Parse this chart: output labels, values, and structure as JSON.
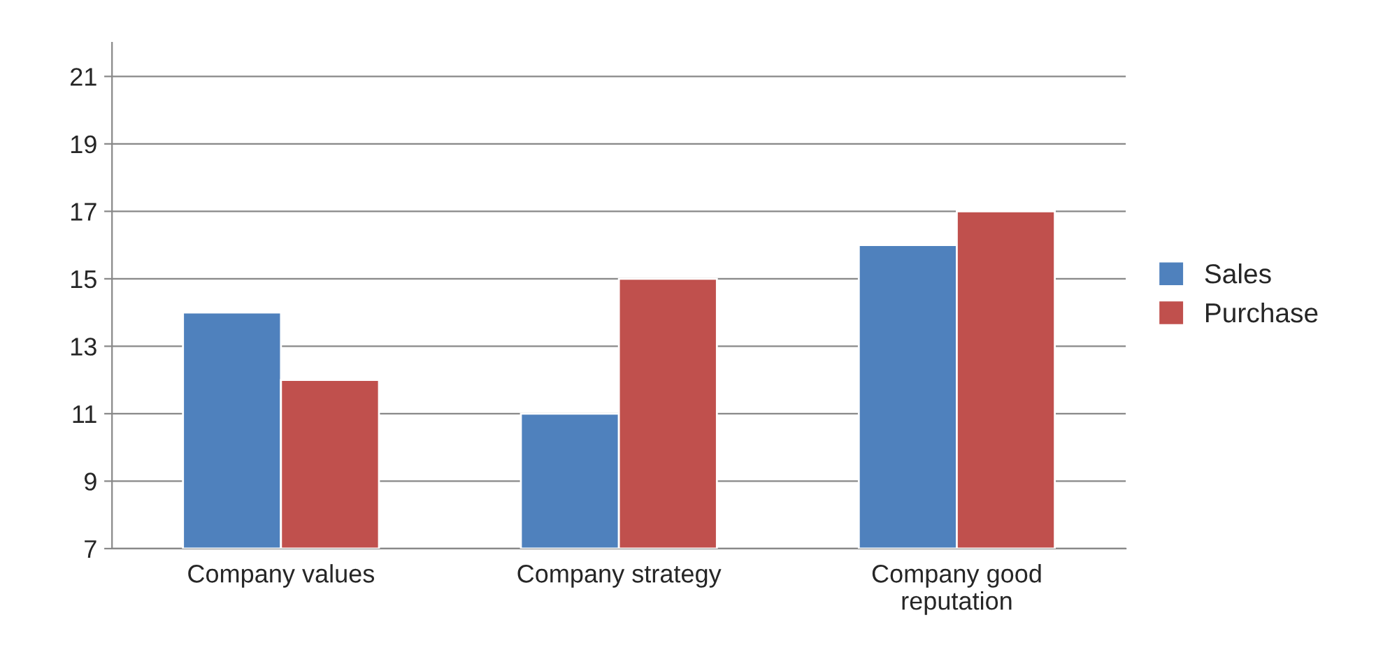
{
  "chart_data": {
    "type": "bar",
    "categories": [
      "Company values",
      "Company strategy",
      "Company good reputation"
    ],
    "series": [
      {
        "name": "Sales",
        "color": "#4f81bd",
        "values": [
          14,
          11,
          16
        ]
      },
      {
        "name": "Purchase",
        "color": "#c0504d",
        "values": [
          12,
          15,
          17
        ]
      }
    ],
    "ylim": [
      7,
      22
    ],
    "yticks": [
      7,
      9,
      11,
      13,
      15,
      17,
      19,
      21
    ],
    "grid": "y",
    "legend": "right"
  }
}
